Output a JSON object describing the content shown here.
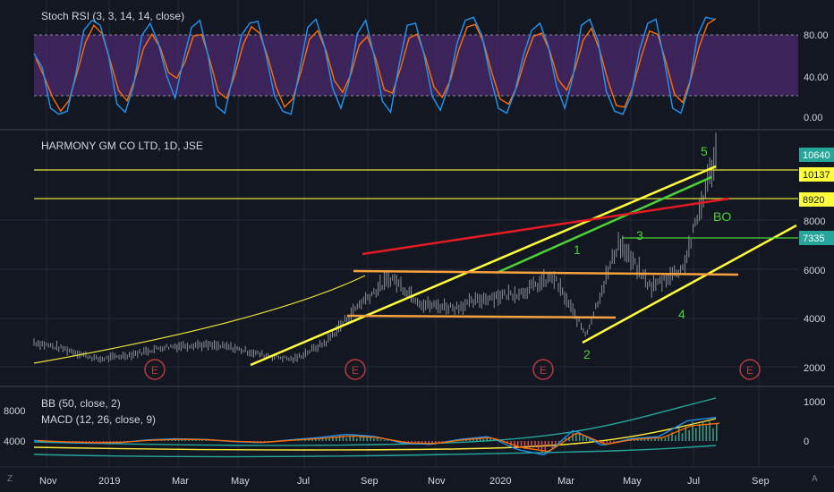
{
  "colors": {
    "background": "#131722",
    "grid": "#242938",
    "text": "#d1d4dc",
    "price_bars": "#8a8f99",
    "stoch_band": "#4b2a6e",
    "stoch_k": "#2196f3",
    "stoch_d": "#ff6d00",
    "yellow": "#ffff3b",
    "green": "#4cd137",
    "red": "#e31b23",
    "orange": "#f7a13e",
    "event_circle": "#b73a3f",
    "price_tag": "#26a69a",
    "bb_band": "#26a69a",
    "bb_basis": "#ffeb3b",
    "macd_line": "#2196f3",
    "signal_line": "#ff6d00"
  },
  "stoch_panel": {
    "title": "Stoch RSI (3, 3, 14, 14, close)",
    "y_labels": [
      "80.00",
      "40.00",
      "0.00"
    ]
  },
  "price_panel": {
    "title": "HARMONY GM CO LTD, 1D, JSE",
    "y_labels": [
      "8000",
      "6000",
      "4000",
      "2000"
    ],
    "price_tags": [
      {
        "text": "10640",
        "style": "green"
      },
      {
        "text": "10137",
        "style": "yellow"
      },
      {
        "text": "8920",
        "style": "yellow"
      },
      {
        "text": "7335",
        "style": "green"
      }
    ],
    "wave_labels": [
      "1",
      "2",
      "3",
      "4",
      "5"
    ],
    "annotation": "BO",
    "event_markers": [
      "E",
      "E",
      "E",
      "E"
    ]
  },
  "indicator_panel": {
    "bb_title": "BB (50, close, 2)",
    "macd_title": "MACD (12, 26, close, 9)",
    "left_labels": [
      "8000",
      "4000"
    ],
    "right_labels": [
      "1000",
      "0"
    ]
  },
  "x_axis": {
    "labels": [
      "Nov",
      "2019",
      "Mar",
      "May",
      "Jul",
      "Sep",
      "Nov",
      "2020",
      "Mar",
      "May",
      "Jul",
      "Sep"
    ]
  },
  "corner_icons": [
    "Z",
    "A"
  ],
  "chart_data": [
    {
      "type": "line",
      "title": "Stoch RSI (3, 3, 14, 14, close)",
      "ylim": [
        0,
        100
      ],
      "bands": [
        20,
        80
      ],
      "series": [
        {
          "name": "K",
          "values": [
            62,
            48,
            8,
            2,
            5,
            40,
            85,
            95,
            90,
            60,
            12,
            4,
            30,
            80,
            92,
            72,
            40,
            18,
            55,
            88,
            95,
            60,
            10,
            3,
            40,
            80,
            92,
            94,
            60,
            20,
            5,
            2,
            45,
            88,
            96,
            70,
            28,
            8,
            35,
            82,
            95,
            60,
            15,
            4,
            50,
            90,
            92,
            62,
            20,
            6,
            30,
            72,
            95,
            98,
            80,
            40,
            8,
            3,
            25,
            60,
            85,
            92,
            70,
            30,
            8,
            40,
            90,
            96,
            75,
            25,
            5,
            2,
            20,
            65,
            92,
            96,
            55,
            8,
            3,
            30,
            80,
            98,
            96
          ]
        }
      ]
    },
    {
      "type": "line",
      "title": "HARMONY GM CO LTD, 1D, JSE",
      "x": [
        "2018-10",
        "2018-11",
        "2018-12",
        "2019-01",
        "2019-02",
        "2019-03",
        "2019-04",
        "2019-05",
        "2019-06",
        "2019-07",
        "2019-08",
        "2019-09",
        "2019-10",
        "2019-11",
        "2019-12",
        "2020-01",
        "2020-02",
        "2020-03",
        "2020-04",
        "2020-05",
        "2020-06",
        "2020-07"
      ],
      "ylim": [
        1000,
        11000
      ],
      "series": [
        {
          "name": "Close",
          "values": [
            3000,
            2700,
            2300,
            2500,
            2800,
            2900,
            2800,
            2500,
            2300,
            3000,
            4500,
            5600,
            4500,
            4400,
            4800,
            5000,
            5600,
            3300,
            7000,
            5200,
            6000,
            10600
          ]
        }
      ]
    },
    {
      "type": "line",
      "title": "MACD (12, 26, close, 9)",
      "ylim": [
        -400,
        1200
      ],
      "series": [
        {
          "name": "Histogram",
          "values": [
            10,
            -20,
            -40,
            -30,
            20,
            40,
            30,
            -10,
            -30,
            20,
            60,
            120,
            80,
            -40,
            -60,
            30,
            80,
            -150,
            -250,
            200,
            -80,
            40,
            80,
            360,
            420
          ]
        }
      ]
    }
  ]
}
